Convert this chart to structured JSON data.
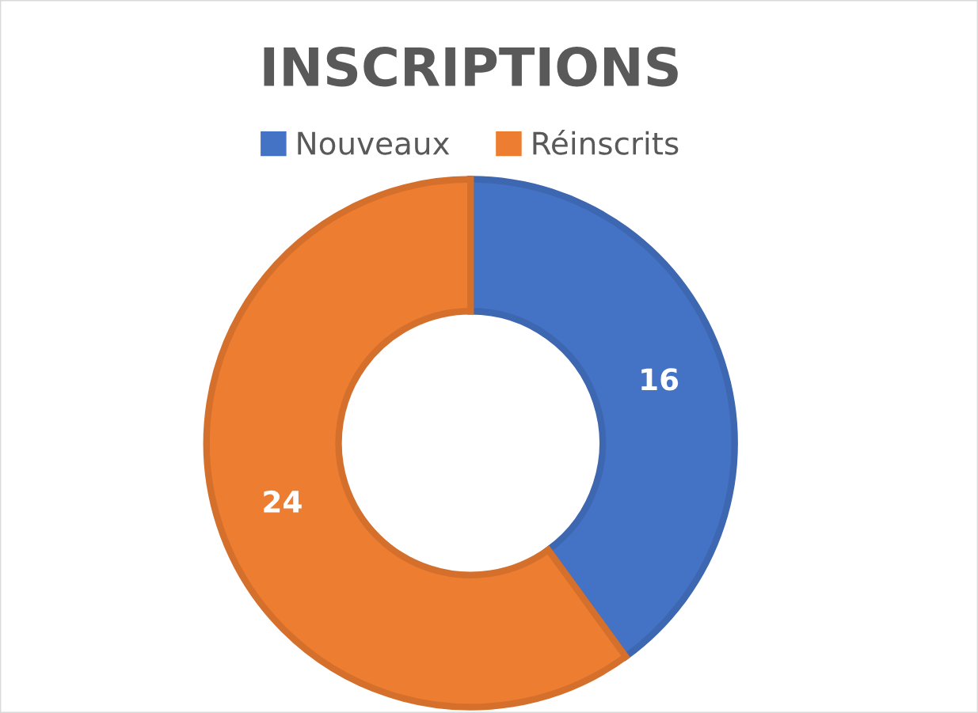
{
  "chart_data": {
    "type": "donut",
    "title": "INSCRIPTIONS",
    "categories": [
      "Nouveaux",
      "Réinscrits"
    ],
    "values": [
      16,
      24
    ],
    "colors": [
      "#4472c4",
      "#ed7d31"
    ],
    "data_labels": true,
    "legend": "top"
  }
}
